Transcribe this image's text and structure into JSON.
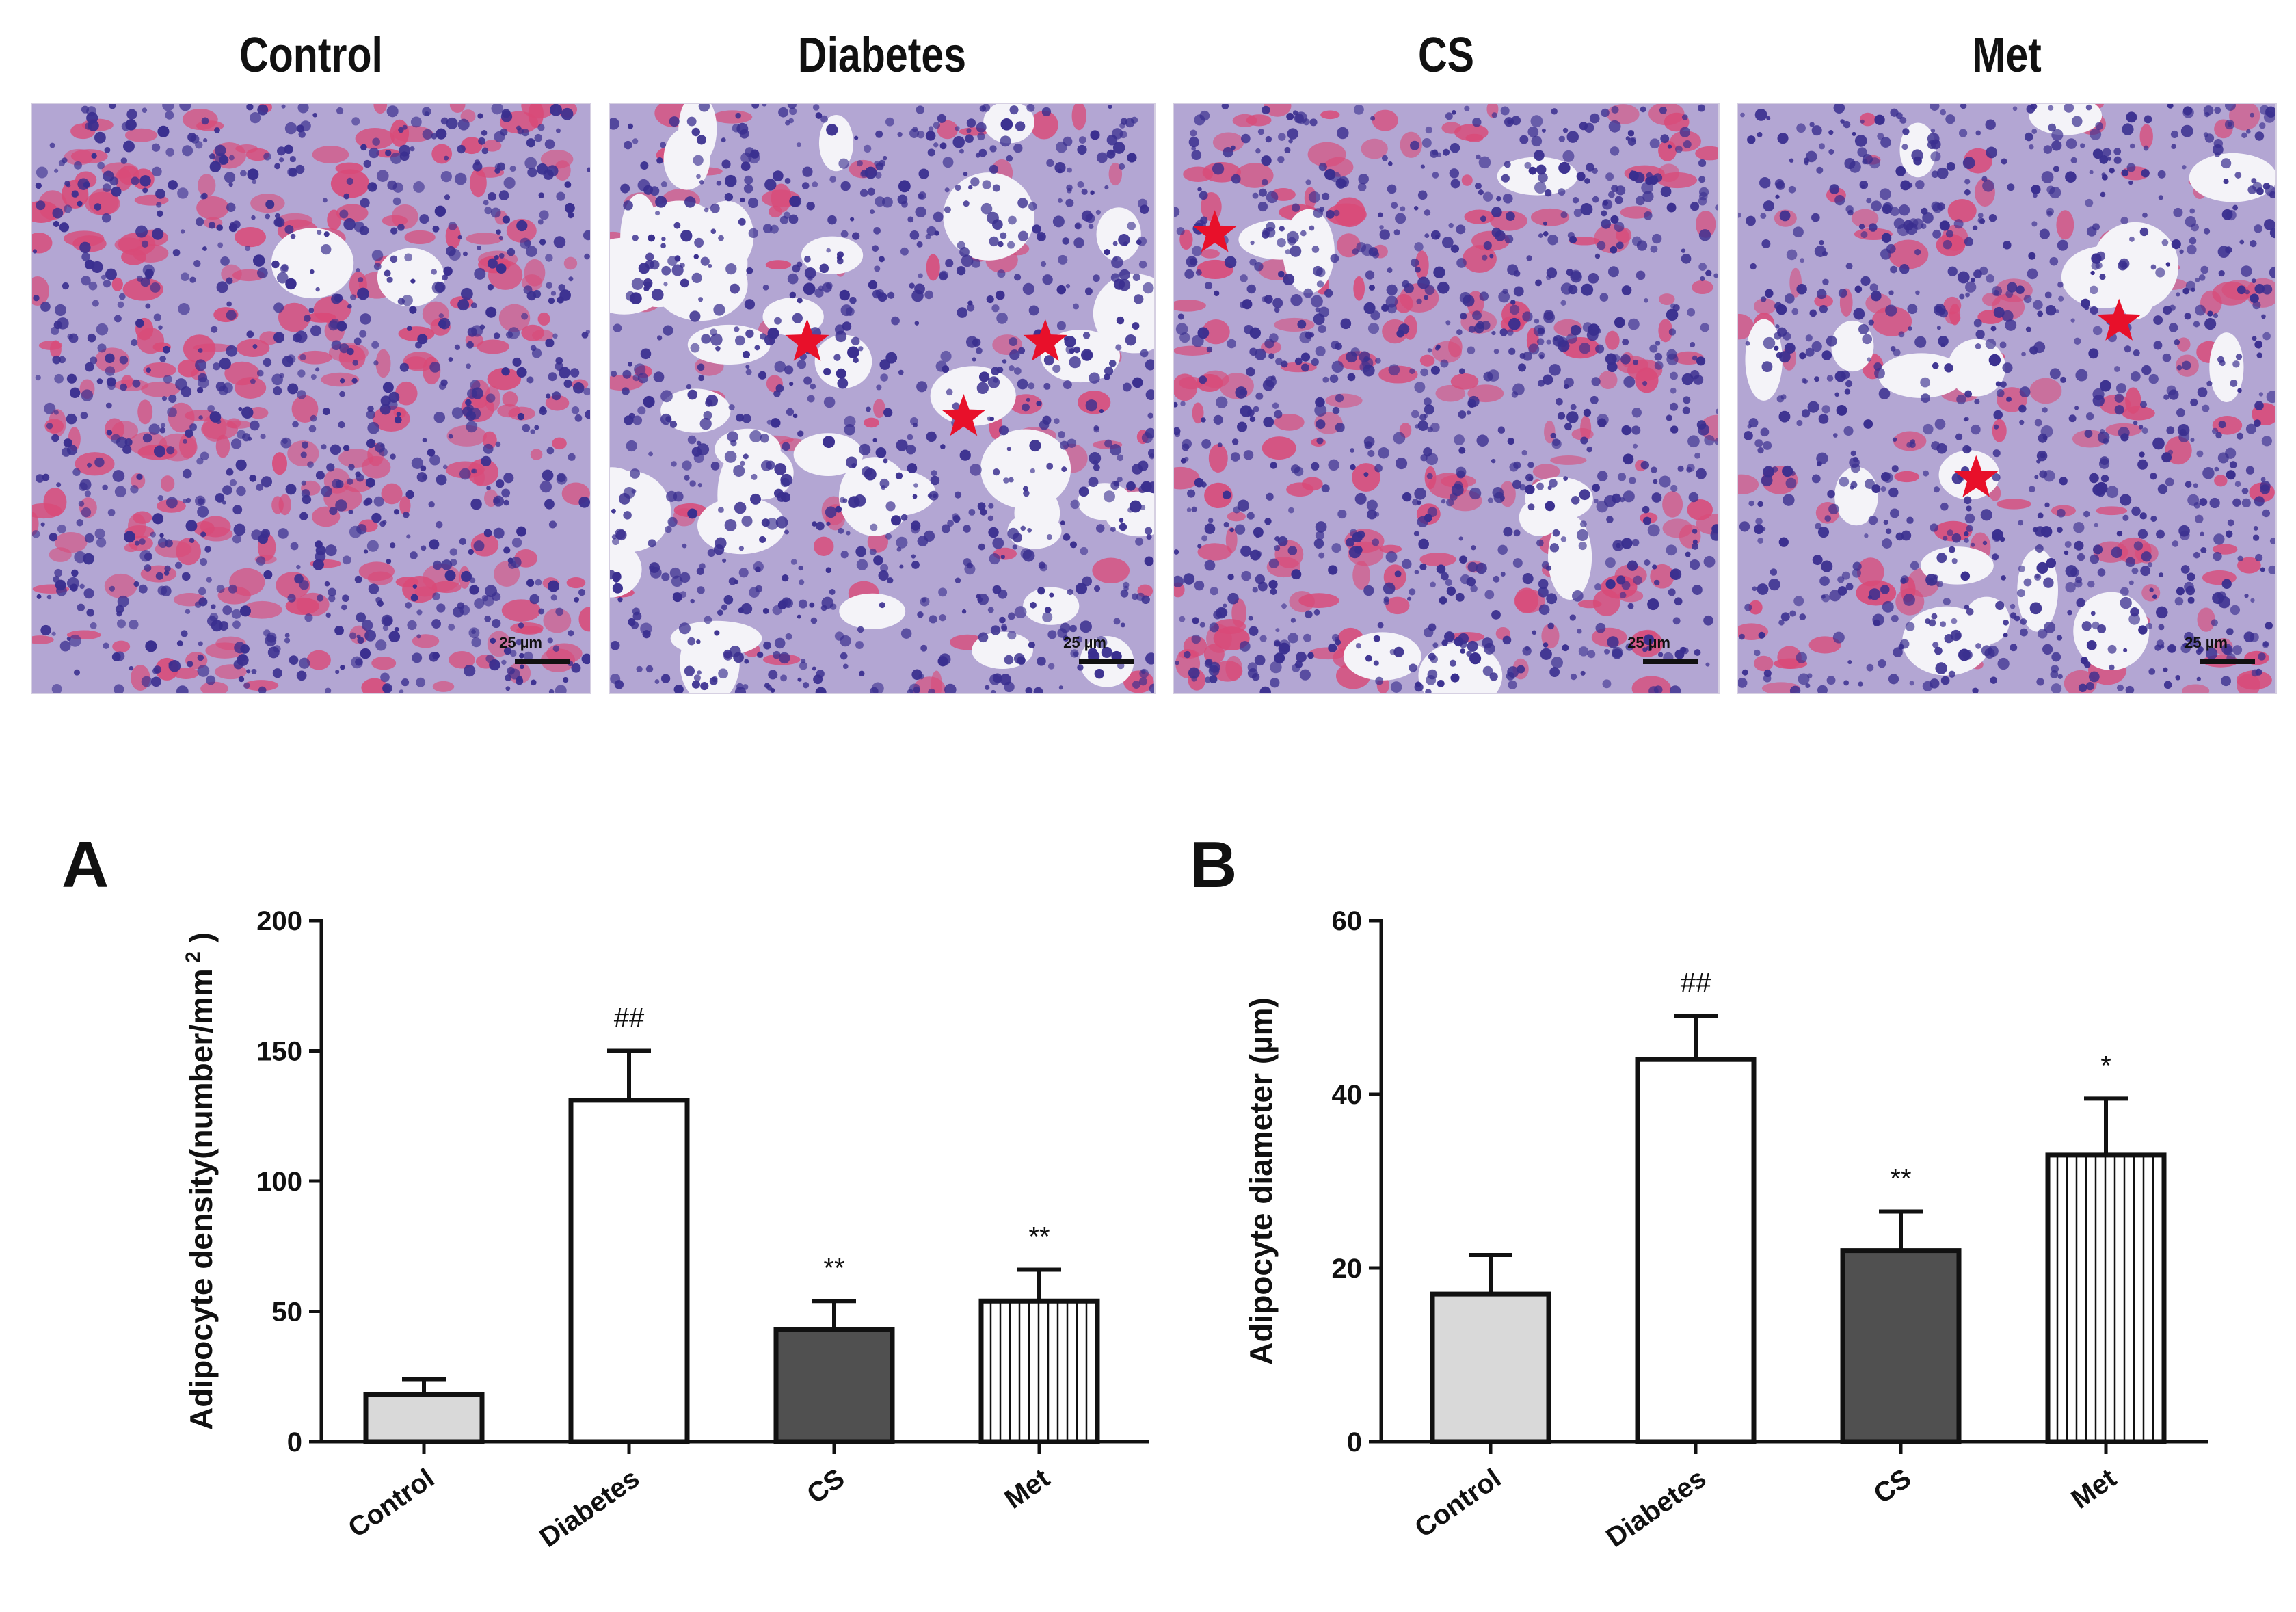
{
  "micrographs": [
    {
      "title": "Control",
      "scale": "25 µm",
      "stars": []
    },
    {
      "title": "Diabetes",
      "scale": "25 µm",
      "stars": [
        "star-icon",
        "star-icon",
        "star-icon"
      ]
    },
    {
      "title": "CS",
      "scale": "25 µm",
      "stars": [
        "star-icon"
      ]
    },
    {
      "title": "Met",
      "scale": "25 µm",
      "stars": [
        "star-icon",
        "star-icon"
      ]
    }
  ],
  "colors": {
    "tissue_bg": "#b3a6d3",
    "nucleus": "#3a2f8f",
    "rbc": "#d94a78",
    "adipocyte": "#f4f3f8",
    "star": "#e8102a",
    "control_bar": "#d9d9d9",
    "diabetes_bar": "#ffffff",
    "cs_bar": "#505050",
    "met_bar": "#ffffff"
  },
  "chart_data": [
    {
      "panel": "A",
      "type": "bar",
      "categories": [
        "Control",
        "Diabetes",
        "CS",
        "Met"
      ],
      "values": [
        18,
        131,
        43,
        54
      ],
      "errors": [
        6,
        19,
        11,
        12
      ],
      "annotations": [
        "",
        "##",
        "**",
        "**"
      ],
      "fills": [
        "solid-light",
        "open",
        "solid-dark",
        "vertical-stripes"
      ],
      "xlabel": "",
      "ylabel": "Adipocyte density(number/mm",
      "ylabel_sup": "2",
      "ylabel_end": ")",
      "ylim": [
        0,
        200
      ],
      "yticks": [
        0,
        50,
        100,
        150,
        200
      ]
    },
    {
      "panel": "B",
      "type": "bar",
      "categories": [
        "Control",
        "Diabetes",
        "CS",
        "Met"
      ],
      "values": [
        17,
        44,
        22,
        33
      ],
      "errors": [
        4.5,
        5,
        4.5,
        6.5
      ],
      "annotations": [
        "",
        "##",
        "**",
        "*"
      ],
      "fills": [
        "solid-light",
        "open",
        "solid-dark",
        "vertical-stripes"
      ],
      "xlabel": "",
      "ylabel": "Adipocyte diameter (µm)",
      "ylim": [
        0,
        60
      ],
      "yticks": [
        0,
        20,
        40,
        60
      ]
    }
  ]
}
